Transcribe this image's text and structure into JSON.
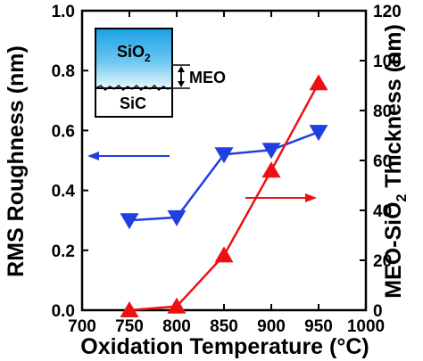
{
  "chart_data": {
    "type": "line",
    "x": [
      750,
      800,
      850,
      900,
      950
    ],
    "xlim": [
      700,
      1000
    ],
    "x_ticks": [
      700,
      750,
      800,
      850,
      900,
      950,
      1000
    ],
    "xlabel": "Oxidation Temperature (°C)",
    "ylabel_left": "RMS Roughness (nm)",
    "ylim_left": [
      0.0,
      1.0
    ],
    "y_ticks_left": [
      "0.0",
      "0.2",
      "0.4",
      "0.6",
      "0.8",
      "1.0"
    ],
    "ylabel_right_main": "MEO-SiO",
    "ylabel_right_sub": "2",
    "ylabel_right_tail": " Thickness (nm)",
    "ylim_right": [
      0,
      120
    ],
    "y_ticks_right": [
      "0",
      "20",
      "40",
      "60",
      "80",
      "100",
      "120"
    ],
    "grid": false,
    "series": [
      {
        "axis": "left",
        "color": "#1f3fe0",
        "marker": "triangle-down",
        "values": [
          0.3,
          0.31,
          0.52,
          0.535,
          0.595
        ]
      },
      {
        "axis": "right",
        "color": "#ee1010",
        "marker": "triangle-up",
        "values": [
          0,
          1.5,
          22,
          56,
          91
        ]
      }
    ],
    "inset": {
      "top_layer_main": "SiO",
      "top_layer_sub": "2",
      "bottom_layer": "SiC",
      "interface_label": "MEO"
    }
  }
}
